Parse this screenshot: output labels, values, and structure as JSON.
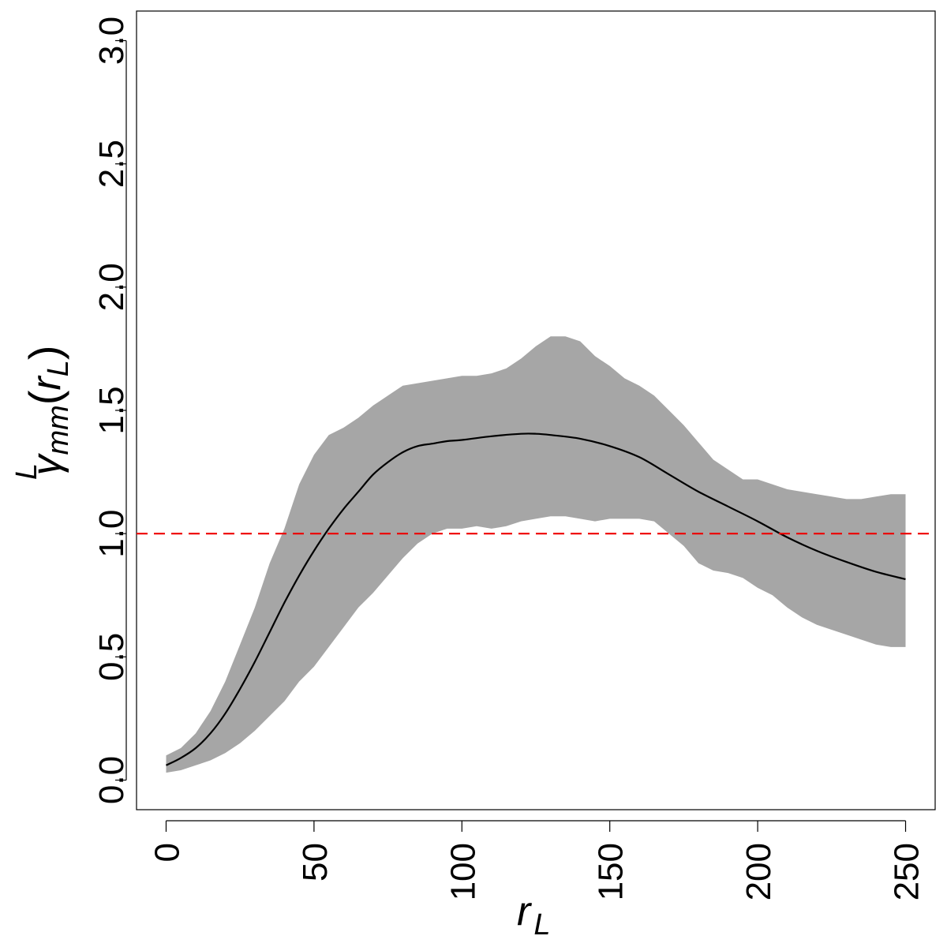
{
  "chart_data": {
    "type": "line",
    "title": "",
    "xlabel": {
      "main": "r",
      "sub": "L"
    },
    "ylabel": {
      "main": "γ",
      "sup": "L",
      "sub": "mm",
      "arg_main": "r",
      "arg_sub": "L"
    },
    "xlim": [
      -10,
      260
    ],
    "ylim": [
      -0.12,
      3.12
    ],
    "x_ticks": [
      0,
      50,
      100,
      150,
      200,
      250
    ],
    "x_tick_labels": [
      "0",
      "50",
      "100",
      "150",
      "200",
      "250"
    ],
    "y_ticks": [
      0.0,
      0.5,
      1.0,
      1.5,
      2.0,
      2.5,
      3.0
    ],
    "y_tick_labels": [
      "0.0",
      "0.5",
      "1.0",
      "1.5",
      "2.0",
      "2.5",
      "3.0"
    ],
    "grid": false,
    "legend": "none",
    "reference_line": {
      "y": 1.0,
      "color": "#ee0000",
      "style": "dashed"
    },
    "series": [
      {
        "kind": "line",
        "color": "#000000",
        "x": [
          0,
          5,
          10,
          15,
          20,
          25,
          30,
          35,
          40,
          45,
          50,
          55,
          60,
          65,
          70,
          75,
          80,
          85,
          90,
          95,
          100,
          110,
          120,
          125,
          130,
          140,
          150,
          160,
          170,
          180,
          190,
          200,
          210,
          220,
          230,
          240,
          250
        ],
        "y": [
          0.06,
          0.09,
          0.13,
          0.19,
          0.27,
          0.37,
          0.48,
          0.6,
          0.72,
          0.83,
          0.93,
          1.02,
          1.1,
          1.17,
          1.24,
          1.29,
          1.33,
          1.355,
          1.365,
          1.375,
          1.38,
          1.395,
          1.405,
          1.405,
          1.4,
          1.385,
          1.355,
          1.31,
          1.24,
          1.17,
          1.11,
          1.05,
          0.985,
          0.93,
          0.885,
          0.845,
          0.815
        ]
      },
      {
        "kind": "band",
        "color": "#a6a6a6",
        "x": [
          0,
          5,
          10,
          15,
          20,
          25,
          30,
          35,
          40,
          45,
          50,
          55,
          60,
          65,
          70,
          75,
          80,
          85,
          90,
          95,
          100,
          105,
          110,
          115,
          120,
          125,
          130,
          135,
          140,
          145,
          150,
          155,
          160,
          165,
          170,
          175,
          180,
          185,
          190,
          195,
          200,
          205,
          210,
          215,
          220,
          225,
          230,
          235,
          240,
          245,
          250
        ],
        "upper": [
          0.1,
          0.13,
          0.19,
          0.28,
          0.4,
          0.55,
          0.7,
          0.88,
          1.02,
          1.2,
          1.32,
          1.4,
          1.43,
          1.47,
          1.52,
          1.56,
          1.6,
          1.61,
          1.62,
          1.63,
          1.64,
          1.64,
          1.65,
          1.67,
          1.71,
          1.76,
          1.8,
          1.8,
          1.78,
          1.72,
          1.68,
          1.63,
          1.6,
          1.56,
          1.5,
          1.44,
          1.37,
          1.3,
          1.26,
          1.22,
          1.22,
          1.2,
          1.18,
          1.17,
          1.16,
          1.15,
          1.14,
          1.14,
          1.15,
          1.16,
          1.16
        ],
        "lower": [
          0.03,
          0.04,
          0.06,
          0.08,
          0.11,
          0.15,
          0.2,
          0.26,
          0.32,
          0.4,
          0.46,
          0.54,
          0.62,
          0.7,
          0.76,
          0.83,
          0.9,
          0.96,
          1.0,
          1.02,
          1.02,
          1.03,
          1.02,
          1.03,
          1.05,
          1.06,
          1.07,
          1.07,
          1.06,
          1.05,
          1.06,
          1.06,
          1.06,
          1.05,
          1.0,
          0.95,
          0.88,
          0.85,
          0.84,
          0.82,
          0.78,
          0.75,
          0.7,
          0.66,
          0.63,
          0.61,
          0.59,
          0.57,
          0.55,
          0.54,
          0.54
        ]
      }
    ]
  }
}
